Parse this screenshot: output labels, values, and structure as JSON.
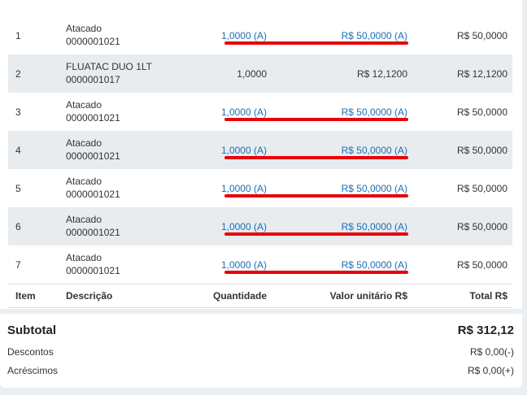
{
  "items": [
    {
      "item": "1",
      "desc": "Atacado",
      "code": "0000001021",
      "qty": "1,0000 (A)",
      "unit": "R$ 50,0000 (A)",
      "total": "R$ 50,0000",
      "link": true
    },
    {
      "item": "2",
      "desc": "FLUATAC DUO 1LT",
      "code": "0000001017",
      "qty": "1,0000",
      "unit": "R$ 12,1200",
      "total": "R$ 12,1200",
      "link": false
    },
    {
      "item": "3",
      "desc": "Atacado",
      "code": "0000001021",
      "qty": "1,0000 (A)",
      "unit": "R$ 50,0000 (A)",
      "total": "R$ 50,0000",
      "link": true
    },
    {
      "item": "4",
      "desc": "Atacado",
      "code": "0000001021",
      "qty": "1,0000 (A)",
      "unit": "R$ 50,0000 (A)",
      "total": "R$ 50,0000",
      "link": true
    },
    {
      "item": "5",
      "desc": "Atacado",
      "code": "0000001021",
      "qty": "1,0000 (A)",
      "unit": "R$ 50,0000 (A)",
      "total": "R$ 50,0000",
      "link": true
    },
    {
      "item": "6",
      "desc": "Atacado",
      "code": "0000001021",
      "qty": "1,0000 (A)",
      "unit": "R$ 50,0000 (A)",
      "total": "R$ 50,0000",
      "link": true
    },
    {
      "item": "7",
      "desc": "Atacado",
      "code": "0000001021",
      "qty": "1,0000 (A)",
      "unit": "R$ 50,0000 (A)",
      "total": "R$ 50,0000",
      "link": true
    }
  ],
  "headers": {
    "item": "Item",
    "desc": "Descrição",
    "qty": "Quantidade",
    "unit": "Valor unitário R$",
    "total": "Total R$"
  },
  "summary": {
    "subtotal_label": "Subtotal",
    "subtotal_value": "R$ 312,12",
    "descontos_label": "Descontos",
    "descontos_value": "R$ 0,00(-)",
    "acrescimos_label": "Acréscimos",
    "acrescimos_value": "R$ 0,00(+)"
  },
  "colors": {
    "link": "#1a6fb5",
    "annotation": "#e8000b",
    "shaded_row": "#e8ecef"
  }
}
